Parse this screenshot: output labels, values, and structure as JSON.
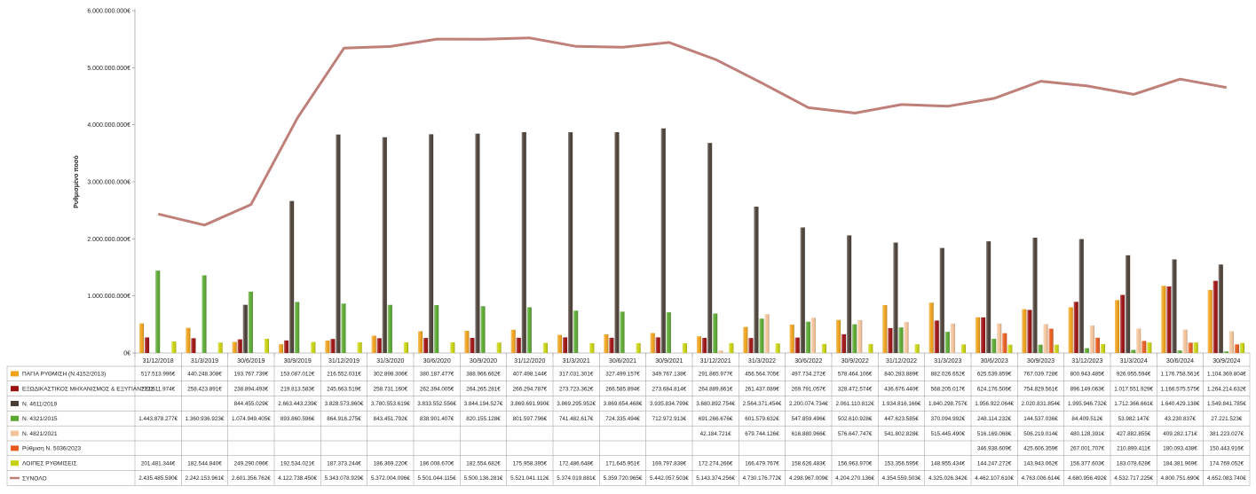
{
  "chart_data": {
    "type": "bar",
    "ylabel": "Ρυθμισμένο ποσό",
    "ylim": [
      0,
      6000000000
    ],
    "yticks": [
      "0€",
      "1.000.000.000€",
      "2.000.000.000€",
      "3.000.000.000€",
      "4.000.000.000€",
      "5.000.000.000€",
      "6.000.000.000€"
    ],
    "grid": false,
    "legend_placement": "data-table-left",
    "categories": [
      "31/12/2018",
      "31/3/2019",
      "30/6/2019",
      "30/9/2019",
      "31/12/2019",
      "31/3/2020",
      "30/6/2020",
      "30/9/2020",
      "31/12/2020",
      "31/3/2021",
      "30/6/2021",
      "30/9/2021",
      "31/12/2021",
      "31/3/2022",
      "30/6/2022",
      "30/9/2022",
      "31/12/2022",
      "31/3/2023",
      "30/6/2023",
      "30/9/2023",
      "31/12/2023",
      "31/3/2024",
      "30/6/2024",
      "30/9/2024"
    ],
    "series": [
      {
        "name": "ΠΑΓΙΑ ΡΥΘΜΙΣΗ (Ν.4152/2013)",
        "type": "bar",
        "color": "#f0a21a",
        "values": [
          517513996,
          440248308,
          193767739,
          153087012,
          216552031,
          302898306,
          380187477,
          388966662,
          407498144,
          317031301,
          327499157,
          349767138,
          291865977,
          456564705,
          497734272,
          578464106,
          840283889,
          882026652,
          625539859,
          767039728,
          800943485,
          926955594,
          1176758561,
          1104369804
        ],
        "labels": [
          "517.513.996€",
          "440.248.308€",
          "193.767.739€",
          "153.087.012€",
          "216.552.031€",
          "302.898.306€",
          "380.187.477€",
          "388.966.662€",
          "407.498.144€",
          "317.031.301€",
          "327.499.157€",
          "349.767.138€",
          "291.865.977€",
          "456.564.705€",
          "497.734.272€",
          "578.464.106€",
          "840.283.889€",
          "882.026.652€",
          "625.539.859€",
          "767.039.728€",
          "800.943.485€",
          "926.955.594€",
          "1.176.758.561€",
          "1.104.369.804€"
        ]
      },
      {
        "name": "ΕΞΩΔΙΚΑΣΤΙΚΟΣ ΜΗΧΑΝΙΣΜΟΣ & ΕΞΥΓΙΑΝΣΕΙΣ",
        "type": "bar",
        "color": "#9b0f0f",
        "values": [
          272611974,
          258423891,
          238894493,
          219813583,
          245663519,
          258731160,
          262394005,
          264265281,
          266294787,
          273723362,
          266585894,
          273684814,
          264889861,
          261437089,
          269791057,
          328472574,
          436676440,
          568205017,
          624176506,
          754829561,
          896149063,
          1017551929,
          1166575575,
          1264214632
        ],
        "labels": [
          "272.611.974€",
          "258.423.891€",
          "238.894.493€",
          "219.813.583€",
          "245.663.519€",
          "258.731.160€",
          "262.394.005€",
          "264.265.281€",
          "266.294.787€",
          "273.723.362€",
          "266.585.894€",
          "273.684.814€",
          "264.889.861€",
          "261.437.089€",
          "269.791.057€",
          "328.472.574€",
          "436.676.440€",
          "568.205.017€",
          "624.176.506€",
          "754.829.561€",
          "896.149.063€",
          "1.017.551.929€",
          "1.166.575.575€",
          "1.264.214.632€"
        ]
      },
      {
        "name": "Ν. 4611/2019",
        "type": "bar",
        "color": "#4a3f36",
        "values": [
          null,
          null,
          844455029,
          2663443239,
          3828573860,
          3780553619,
          3833552556,
          3844194527,
          3869691990,
          3869295952,
          3869654468,
          3935834799,
          3680892754,
          2564371454,
          2200074734,
          2061110812,
          1934816166,
          1840298757,
          1956922064,
          2020831854,
          1995946732,
          1712366661,
          1640429138,
          1549841785
        ],
        "labels": [
          "",
          "",
          "844.455.029€",
          "2.663.443.239€",
          "3.828.573.860€",
          "3.780.553.619€",
          "3.833.552.556€",
          "3.844.194.527€",
          "3.869.691.990€",
          "3.869.295.952€",
          "3.869.654.468€",
          "3.935.834.799€",
          "3.680.892.754€",
          "2.564.371.454€",
          "2.200.074.734€",
          "2.061.110.812€",
          "1.934.816.166€",
          "1.840.298.757€",
          "1.956.922.064€",
          "2.020.831.854€",
          "1.995.946.732€",
          "1.712.366.661€",
          "1.640.429.138€",
          "1.549.841.785€"
        ]
      },
      {
        "name": "Ν. 4321/2015",
        "type": "bar",
        "color": "#5aa830",
        "values": [
          1443878277,
          1360936923,
          1074949405,
          893860596,
          864916275,
          843451792,
          838901407,
          820155128,
          801597796,
          741482617,
          724335494,
          712972913,
          691266676,
          601579632,
          547859496,
          502610928,
          447623585,
          370094992,
          248114232,
          144537036,
          84409512,
          53982147,
          43230837,
          27221523
        ],
        "labels": [
          "1.443.878.277€",
          "1.360.936.923€",
          "1.074.949.405€",
          "893.860.596€",
          "864.916.275€",
          "843.451.792€",
          "838.901.407€",
          "820.155.128€",
          "801.597.796€",
          "741.482.617€",
          "724.335.494€",
          "712.972.913€",
          "691.266.676€",
          "601.579.632€",
          "547.859.496€",
          "502.610.928€",
          "447.623.585€",
          "370.094.992€",
          "248.114.232€",
          "144.537.036€",
          "84.409.512€",
          "53.982.147€",
          "43.230.837€",
          "27.221.523€"
        ]
      },
      {
        "name": "Ν. 4821/2021",
        "type": "bar",
        "color": "#f4c49a",
        "values": [
          null,
          null,
          null,
          null,
          null,
          null,
          null,
          null,
          null,
          null,
          null,
          null,
          42184721,
          679744126,
          616880966,
          576647747,
          541802828,
          515445490,
          516169068,
          506219014,
          480128391,
          427882855,
          409282171,
          381223027
        ],
        "labels": [
          "",
          "",
          "",
          "",
          "",
          "",
          "",
          "",
          "",
          "",
          "",
          "",
          "42.184.721€",
          "679.744.126€",
          "616.880.966€",
          "576.647.747€",
          "541.802.828€",
          "515.445.490€",
          "516.169.068€",
          "506.219.014€",
          "480.128.391€",
          "427.882.855€",
          "409.282.171€",
          "381.223.027€"
        ]
      },
      {
        "name": "Ρύθμιση Ν. 5036/2023",
        "type": "bar",
        "color": "#e85a1c",
        "values": [
          null,
          null,
          null,
          null,
          null,
          null,
          null,
          null,
          null,
          null,
          null,
          null,
          null,
          null,
          null,
          null,
          null,
          null,
          346938609,
          425606359,
          267001707,
          210899411,
          180093438,
          150443916
        ],
        "labels": [
          "",
          "",
          "",
          "",
          "",
          "",
          "",
          "",
          "",
          "",
          "",
          "",
          "",
          "",
          "",
          "",
          "",
          "",
          "346.938.609€",
          "425.606.359€",
          "267.001.707€",
          "210.899.411€",
          "180.093.438€",
          "150.443.916€"
        ]
      },
      {
        "name": "ΛΟΙΠΕΣ ΡΥΘΜΙΣΕΙΣ",
        "type": "bar",
        "color": "#c8d20a",
        "values": [
          201481344,
          182544840,
          249290096,
          192534021,
          187373244,
          186369220,
          186008670,
          182554682,
          175958395,
          172486648,
          171645951,
          169797838,
          172274266,
          166479767,
          158626483,
          156963970,
          153356595,
          148955434,
          144247272,
          143943062,
          156377603,
          183078628,
          184381969,
          174769052
        ],
        "labels": [
          "201.481.344€",
          "182.544.840€",
          "249.290.096€",
          "192.534.021€",
          "187.373.244€",
          "186.369.220€",
          "186.008.670€",
          "182.554.682€",
          "175.958.395€",
          "172.486.648€",
          "171.645.951€",
          "169.797.838€",
          "172.274.266€",
          "166.479.767€",
          "158.626.483€",
          "156.963.970€",
          "153.356.595€",
          "148.955.434€",
          "144.247.272€",
          "143.943.062€",
          "156.377.603€",
          "183.078.628€",
          "184.381.969€",
          "174.769.052€"
        ]
      },
      {
        "name": "ΣΥΝΟΛΟ",
        "type": "line",
        "color": "#c0807a",
        "values": [
          2435485590,
          2242153961,
          2601356762,
          4122738450,
          5343078929,
          5372004096,
          5501044115,
          5500136281,
          5521041112,
          5374019881,
          5359720965,
          5442057503,
          5143374256,
          4730176772,
          4298967009,
          4204270136,
          4354559503,
          4325026342,
          4462107610,
          4763006614,
          4680956492,
          4532717225,
          4800751690,
          4652083740
        ],
        "labels": [
          "2.435.485.590€",
          "2.242.153.961€",
          "2.601.356.762€",
          "4.122.738.450€",
          "5.343.078.929€",
          "5.372.004.096€",
          "5.501.044.115€",
          "5.500.136.281€",
          "5.521.041.112€",
          "5.374.019.881€",
          "5.359.720.965€",
          "5.442.057.503€",
          "5.143.374.256€",
          "4.730.176.772€",
          "4.298.967.009€",
          "4.204.270.136€",
          "4.354.559.503€",
          "4.325.026.342€",
          "4.462.107.610€",
          "4.763.006.614€",
          "4.680.956.492€",
          "4.532.717.225€",
          "4.800.751.690€",
          "4.652.083.740€"
        ]
      }
    ]
  }
}
